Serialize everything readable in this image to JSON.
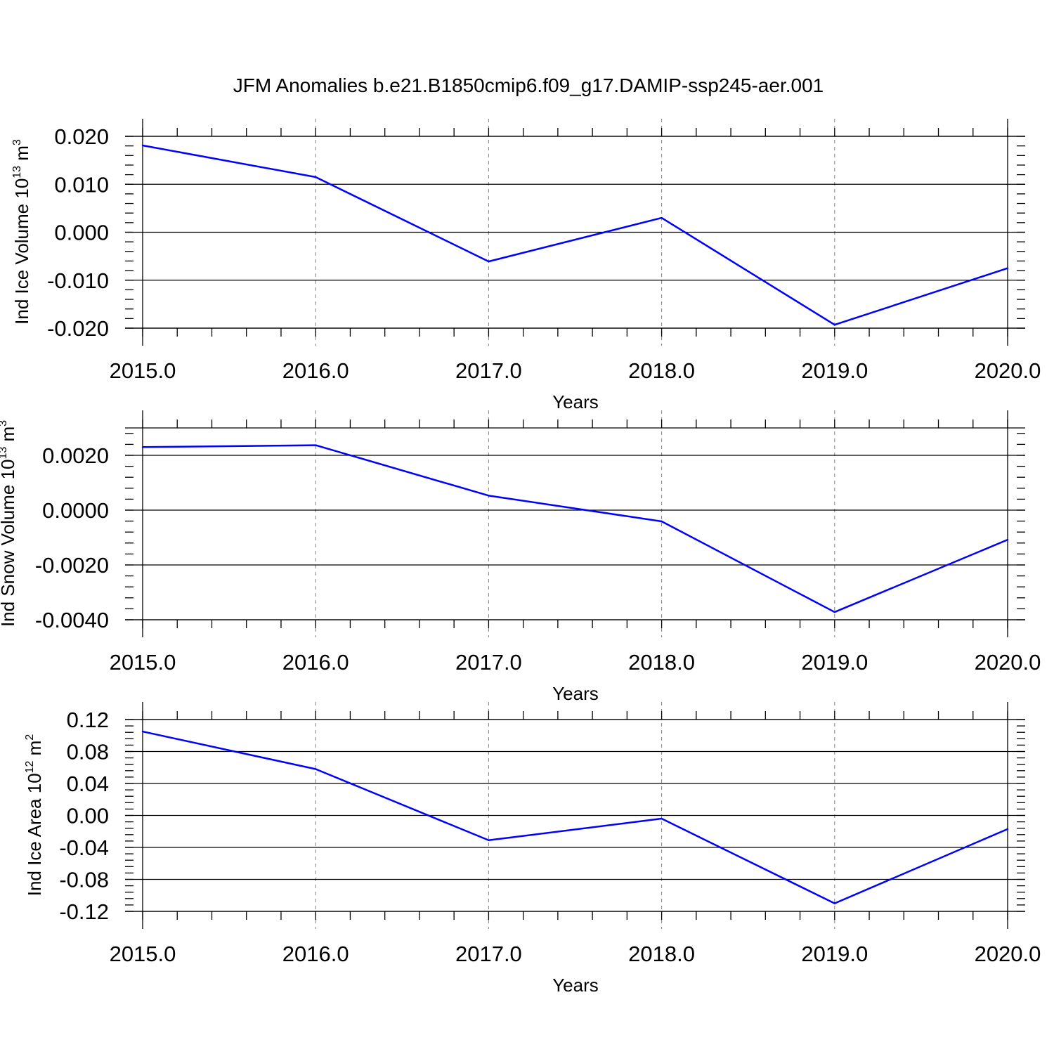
{
  "title": "JFM Anomalies b.e21.B1850cmip6.f09_g17.DAMIP-ssp245-aer.001",
  "colors": {
    "line": "#0000ff",
    "axis": "#000000",
    "grid": "#7f7f7f",
    "background": "#ffffff"
  },
  "chart_data": [
    {
      "type": "line",
      "ylabel": "Ind Ice Volume 10",
      "ylabel_exp": "13",
      "ylabel_unit": " m",
      "ylabel_unit_exp": "3",
      "xlabel": "Years",
      "xlim": [
        2015,
        2020
      ],
      "ylim": [
        -0.02,
        0.02
      ],
      "xticks": [
        2015,
        2016,
        2017,
        2018,
        2019,
        2020
      ],
      "xtick_labels": [
        "2015.0",
        "2016.0",
        "2017.0",
        "2018.0",
        "2019.0",
        "2020.0"
      ],
      "yticks": [
        -0.02,
        -0.01,
        0,
        0.01,
        0.02
      ],
      "ytick_labels": [
        "-0.020",
        "-0.010",
        "0.000",
        "0.010",
        "0.020"
      ],
      "grid": "vertical-dashed",
      "x": [
        2015,
        2016,
        2017,
        2018,
        2019,
        2020
      ],
      "values": [
        0.0181,
        0.0115,
        -0.0061,
        0.003,
        -0.0193,
        -0.0075
      ]
    },
    {
      "type": "line",
      "ylabel": "Ind Snow Volume 10",
      "ylabel_exp": "13",
      "ylabel_unit": " m",
      "ylabel_unit_exp": "3",
      "xlabel": "Years",
      "xlim": [
        2015,
        2020
      ],
      "ylim": [
        -0.004,
        0.003
      ],
      "xticks": [
        2015,
        2016,
        2017,
        2018,
        2019,
        2020
      ],
      "xtick_labels": [
        "2015.0",
        "2016.0",
        "2017.0",
        "2018.0",
        "2019.0",
        "2020.0"
      ],
      "yticks": [
        -0.004,
        -0.002,
        0,
        0.002
      ],
      "ytick_labels": [
        "-0.0040",
        "-0.0020",
        "0.0000",
        "0.0020"
      ],
      "grid": "vertical-dashed",
      "x": [
        2015,
        2016,
        2017,
        2018,
        2019,
        2020
      ],
      "values": [
        0.0023,
        0.00237,
        0.00053,
        -0.00041,
        -0.00372,
        -0.00108
      ]
    },
    {
      "type": "line",
      "ylabel": "Ind Ice Area 10",
      "ylabel_exp": "12",
      "ylabel_unit": " m",
      "ylabel_unit_exp": "2",
      "xlabel": "Years",
      "xlim": [
        2015,
        2020
      ],
      "ylim": [
        -0.12,
        0.12
      ],
      "xticks": [
        2015,
        2016,
        2017,
        2018,
        2019,
        2020
      ],
      "xtick_labels": [
        "2015.0",
        "2016.0",
        "2017.0",
        "2018.0",
        "2019.0",
        "2020.0"
      ],
      "yticks": [
        -0.12,
        -0.08,
        -0.04,
        0,
        0.04,
        0.08,
        0.12
      ],
      "ytick_labels": [
        "-0.12",
        "-0.08",
        "-0.04",
        "0.00",
        "0.04",
        "0.08",
        "0.12"
      ],
      "grid": "vertical-dashed",
      "x": [
        2015,
        2016,
        2017,
        2018,
        2019,
        2020
      ],
      "values": [
        0.105,
        0.058,
        -0.031,
        -0.004,
        -0.11,
        -0.017
      ]
    }
  ]
}
